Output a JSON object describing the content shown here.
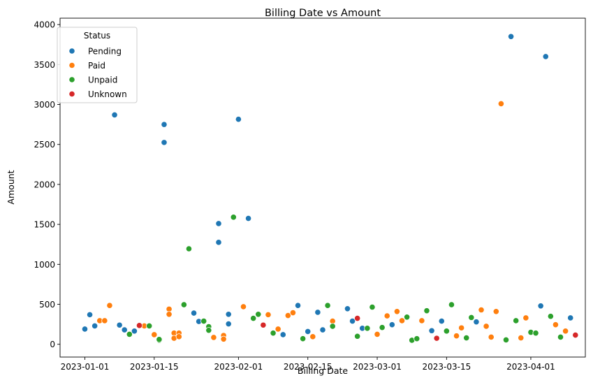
{
  "chart_data": {
    "type": "scatter",
    "title": "Billing Date vs Amount",
    "xlabel": "Billing Date",
    "ylabel": "Amount",
    "xlim": [
      "2022-12-27",
      "2023-04-12"
    ],
    "ylim": [
      -160,
      4080
    ],
    "x_ticks": [
      "2023-01-01",
      "2023-01-15",
      "2023-02-01",
      "2023-02-15",
      "2023-03-01",
      "2023-03-15",
      "2023-04-01"
    ],
    "x_tick_labels": [
      "2023-01-01",
      "2023-01-15",
      "2023-02-01",
      "2023-02-15",
      "2023-03-01",
      "2023-03-15",
      "2023-04-01"
    ],
    "y_ticks": [
      0,
      500,
      1000,
      1500,
      2000,
      2500,
      3000,
      3500,
      4000
    ],
    "y_tick_labels": [
      "0",
      "500",
      "1000",
      "1500",
      "2000",
      "2500",
      "3000",
      "3500",
      "4000"
    ],
    "grid": false,
    "legend": {
      "title": "Status",
      "placement": "top-left"
    },
    "series": [
      {
        "name": "Pending",
        "color": "#1f77b4",
        "points": [
          [
            "2023-01-01",
            190
          ],
          [
            "2023-01-02",
            370
          ],
          [
            "2023-01-03",
            230
          ],
          [
            "2023-01-07",
            2870
          ],
          [
            "2023-01-08",
            240
          ],
          [
            "2023-01-09",
            180
          ],
          [
            "2023-01-11",
            165
          ],
          [
            "2023-01-17",
            2525
          ],
          [
            "2023-01-17",
            2750
          ],
          [
            "2023-01-23",
            390
          ],
          [
            "2023-01-24",
            285
          ],
          [
            "2023-01-28",
            1510
          ],
          [
            "2023-01-28",
            1275
          ],
          [
            "2023-01-30",
            375
          ],
          [
            "2023-01-30",
            255
          ],
          [
            "2023-02-01",
            2815
          ],
          [
            "2023-02-03",
            1575
          ],
          [
            "2023-02-10",
            120
          ],
          [
            "2023-02-13",
            485
          ],
          [
            "2023-02-15",
            160
          ],
          [
            "2023-02-17",
            400
          ],
          [
            "2023-02-18",
            180
          ],
          [
            "2023-02-23",
            445
          ],
          [
            "2023-02-24",
            290
          ],
          [
            "2023-02-26",
            200
          ],
          [
            "2023-03-04",
            245
          ],
          [
            "2023-03-12",
            170
          ],
          [
            "2023-03-14",
            290
          ],
          [
            "2023-03-21",
            280
          ],
          [
            "2023-03-28",
            3850
          ],
          [
            "2023-04-03",
            480
          ],
          [
            "2023-04-04",
            3600
          ],
          [
            "2023-04-09",
            330
          ]
        ]
      },
      {
        "name": "Paid",
        "color": "#ff7f0e",
        "points": [
          [
            "2023-01-04",
            295
          ],
          [
            "2023-01-05",
            295
          ],
          [
            "2023-01-06",
            485
          ],
          [
            "2023-01-13",
            230
          ],
          [
            "2023-01-15",
            120
          ],
          [
            "2023-01-18",
            440
          ],
          [
            "2023-01-18",
            375
          ],
          [
            "2023-01-19",
            140
          ],
          [
            "2023-01-19",
            75
          ],
          [
            "2023-01-20",
            140
          ],
          [
            "2023-01-20",
            95
          ],
          [
            "2023-01-27",
            85
          ],
          [
            "2023-01-29",
            110
          ],
          [
            "2023-01-29",
            65
          ],
          [
            "2023-02-02",
            470
          ],
          [
            "2023-02-07",
            370
          ],
          [
            "2023-02-09",
            190
          ],
          [
            "2023-02-11",
            360
          ],
          [
            "2023-02-12",
            395
          ],
          [
            "2023-02-16",
            95
          ],
          [
            "2023-02-20",
            290
          ],
          [
            "2023-03-01",
            125
          ],
          [
            "2023-03-03",
            355
          ],
          [
            "2023-03-05",
            410
          ],
          [
            "2023-03-06",
            295
          ],
          [
            "2023-03-10",
            295
          ],
          [
            "2023-03-17",
            105
          ],
          [
            "2023-03-18",
            205
          ],
          [
            "2023-03-22",
            430
          ],
          [
            "2023-03-23",
            225
          ],
          [
            "2023-03-24",
            90
          ],
          [
            "2023-03-25",
            410
          ],
          [
            "2023-03-26",
            3010
          ],
          [
            "2023-03-30",
            80
          ],
          [
            "2023-03-31",
            330
          ],
          [
            "2023-04-06",
            245
          ],
          [
            "2023-04-08",
            165
          ]
        ]
      },
      {
        "name": "Unpaid",
        "color": "#2ca02c",
        "points": [
          [
            "2023-01-10",
            125
          ],
          [
            "2023-01-14",
            230
          ],
          [
            "2023-01-16",
            50
          ],
          [
            "2023-01-16",
            60
          ],
          [
            "2023-01-21",
            495
          ],
          [
            "2023-01-22",
            1195
          ],
          [
            "2023-01-25",
            290
          ],
          [
            "2023-01-26",
            220
          ],
          [
            "2023-01-26",
            175
          ],
          [
            "2023-01-31",
            1590
          ],
          [
            "2023-02-04",
            325
          ],
          [
            "2023-02-05",
            375
          ],
          [
            "2023-02-08",
            140
          ],
          [
            "2023-02-14",
            70
          ],
          [
            "2023-02-19",
            485
          ],
          [
            "2023-02-20",
            225
          ],
          [
            "2023-02-25",
            100
          ],
          [
            "2023-02-27",
            200
          ],
          [
            "2023-02-28",
            465
          ],
          [
            "2023-03-02",
            210
          ],
          [
            "2023-03-07",
            340
          ],
          [
            "2023-03-08",
            50
          ],
          [
            "2023-03-09",
            70
          ],
          [
            "2023-03-11",
            420
          ],
          [
            "2023-03-15",
            165
          ],
          [
            "2023-03-16",
            495
          ],
          [
            "2023-03-19",
            80
          ],
          [
            "2023-03-20",
            335
          ],
          [
            "2023-03-27",
            55
          ],
          [
            "2023-03-29",
            295
          ],
          [
            "2023-04-01",
            150
          ],
          [
            "2023-04-02",
            140
          ],
          [
            "2023-04-05",
            350
          ],
          [
            "2023-04-07",
            90
          ]
        ]
      },
      {
        "name": "Unknown",
        "color": "#d62728",
        "points": [
          [
            "2023-01-12",
            235
          ],
          [
            "2023-02-06",
            240
          ],
          [
            "2023-02-25",
            325
          ],
          [
            "2023-03-13",
            75
          ],
          [
            "2023-04-10",
            115
          ]
        ]
      }
    ]
  }
}
